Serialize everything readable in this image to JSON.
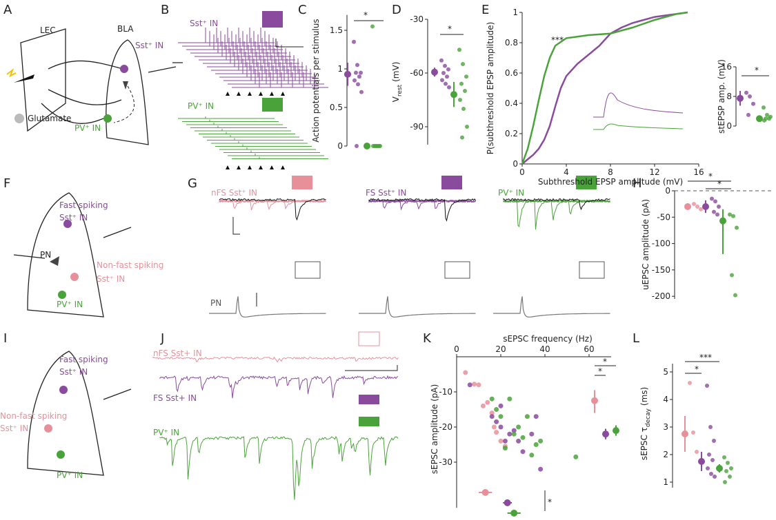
{
  "panel_labels": [
    "A",
    "B",
    "C",
    "D",
    "E",
    "F",
    "G",
    "H",
    "I",
    "J",
    "K",
    "L"
  ],
  "panel_A": {
    "regions": [
      "LEC",
      "BLA"
    ],
    "cells": [
      "Sst⁺ IN",
      "PV⁺ IN"
    ],
    "legend": "Glutamate"
  },
  "panel_B": {
    "traces": [
      "Sst⁺ IN",
      "PV⁺ IN"
    ]
  },
  "panel_F": {
    "cells": [
      "Fast spiking",
      "Sst⁺ IN",
      "PN",
      "Non-fast spiking",
      "Sst⁺ IN",
      "PV⁺ IN"
    ]
  },
  "panel_G": {
    "traces": [
      "nFS Sst⁺ IN",
      "FS Sst⁺ IN",
      "PV⁺ IN"
    ],
    "pn": "PN"
  },
  "panel_I": {
    "cells": [
      "Fast spiking",
      "Sst⁺ IN",
      "Non-fast spiking",
      "Sst⁺ IN",
      "PV⁺ IN"
    ]
  },
  "panel_J": {
    "traces": [
      "nFS Sst+ IN",
      "FS Sst+ IN",
      "PV⁺ IN"
    ]
  },
  "chart_data": [
    {
      "type": "strip",
      "ylabel": "Action potentials per stimulus",
      "ylim": [
        0,
        1.7
      ],
      "yticks": [
        0,
        0.5,
        1,
        1.5
      ],
      "series": [
        {
          "color": "#8a4a9e",
          "values": [
            1.35,
            1.05,
            0.95,
            0.95,
            0.9,
            0.85,
            0.8,
            0.7,
            0
          ],
          "mean": 0.93,
          "ci": [
            0.78,
            1.08
          ]
        },
        {
          "color": "#4aa33a",
          "values": [
            1.55,
            0,
            0,
            0,
            0,
            0,
            0,
            0
          ],
          "mean": 0,
          "ci": [
            0,
            0
          ]
        }
      ],
      "annotations": [
        "*"
      ]
    },
    {
      "type": "strip",
      "ylabel": "V",
      "ylabel_subscript": "rest",
      "ylabel_suffix": "(mV)",
      "ylim": [
        -100,
        -30
      ],
      "yticks": [
        -30,
        -60,
        -90
      ],
      "series": [
        {
          "color": "#8a4a9e",
          "values": [
            -53,
            -56,
            -58,
            -60,
            -62,
            -64,
            -66,
            -68
          ],
          "mean": -59.5,
          "ci": [
            -62,
            -57
          ]
        },
        {
          "color": "#4aa33a",
          "values": [
            -47,
            -55,
            -62,
            -66,
            -70,
            -75,
            -80,
            -90,
            -96
          ],
          "mean": -72,
          "ci": [
            -79,
            -65
          ]
        }
      ],
      "annotations": [
        "*"
      ]
    },
    {
      "type": "line",
      "ylabel": "P(subthreshold EPSP amplitude)",
      "xlabel": "Subthreshold EPSP amplitude (mV)",
      "xlim": [
        0,
        16
      ],
      "ylim": [
        0,
        1
      ],
      "xticks": [
        0,
        4,
        8,
        12,
        16
      ],
      "yticks": [
        0,
        0.2,
        0.4,
        0.6,
        0.8,
        1
      ],
      "series": [
        {
          "color": "#8a4a9e",
          "x": [
            0,
            0.5,
            1,
            1.5,
            2,
            2.5,
            3,
            3.5,
            4,
            5,
            6,
            7,
            8,
            9,
            10,
            11,
            12,
            13,
            14,
            15
          ],
          "values": [
            0,
            0.03,
            0.06,
            0.1,
            0.16,
            0.25,
            0.38,
            0.5,
            0.58,
            0.66,
            0.72,
            0.78,
            0.86,
            0.9,
            0.93,
            0.95,
            0.97,
            0.98,
            0.99,
            1
          ]
        },
        {
          "color": "#4aa33a",
          "x": [
            0,
            0.5,
            1,
            1.5,
            2,
            2.5,
            3,
            4,
            5,
            6,
            8,
            10,
            12,
            14,
            15
          ],
          "values": [
            0,
            0.1,
            0.25,
            0.42,
            0.58,
            0.7,
            0.78,
            0.83,
            0.84,
            0.85,
            0.86,
            0.9,
            0.95,
            0.99,
            1
          ]
        }
      ],
      "annotations": [
        "***"
      ]
    },
    {
      "type": "strip",
      "ylabel": "stEPSP amp. (mV)",
      "ylim": [
        0,
        16
      ],
      "yticks": [
        0,
        8,
        16
      ],
      "series": [
        {
          "color": "#8a4a9e",
          "values": [
            9,
            8,
            6,
            3
          ],
          "mean": 7.5,
          "ci": [
            5.5,
            9.5
          ]
        },
        {
          "color": "#4aa33a",
          "values": [
            5,
            3,
            2.5,
            2,
            2,
            1.5
          ],
          "mean": 2,
          "ci": [
            1.4,
            2.6
          ]
        }
      ],
      "annotations": [
        "*"
      ]
    },
    {
      "type": "strip",
      "ylabel": "uEPSC amplitude (pA)",
      "ylim": [
        -205,
        0
      ],
      "yticks": [
        0,
        -50,
        -100,
        -150,
        -200
      ],
      "zero_line": true,
      "series": [
        {
          "color": "#e8909a",
          "values": [
            -25,
            -30,
            -35
          ],
          "mean": -30,
          "ci": [
            -36,
            -24
          ]
        },
        {
          "color": "#8a4a9e",
          "values": [
            -15,
            -20,
            -30,
            -40,
            -45
          ],
          "mean": -30,
          "ci": [
            -42,
            -18
          ]
        },
        {
          "color": "#4aa33a",
          "values": [
            -45,
            -48,
            -70,
            -160,
            -198
          ],
          "mean": -57,
          "ci": [
            -120,
            -35
          ]
        }
      ],
      "annotations": [
        "*",
        "*"
      ]
    },
    {
      "type": "scatter",
      "xlabel": "sEPSC frequency (Hz)",
      "ylabel": "sEPSC amplitude (pA)",
      "xlim": [
        0,
        70
      ],
      "ylim": [
        -43,
        0
      ],
      "xticks": [
        0,
        20,
        40,
        60
      ],
      "yticks": [
        -10,
        -20,
        -30
      ],
      "series": [
        {
          "color": "#e8909a",
          "x": [
            4,
            8,
            12,
            14,
            16,
            17,
            18,
            20,
            22,
            10
          ],
          "values": [
            -4.5,
            -7.8,
            -14,
            -13,
            -16,
            -20,
            -21.5,
            -24,
            -25.5,
            -8
          ],
          "mean_x": 13,
          "ci_x": [
            10,
            16
          ],
          "mean_y": -12.5,
          "ci_y": [
            -16,
            -9.5
          ]
        },
        {
          "color": "#8a4a9e",
          "x": [
            6,
            16,
            18,
            20,
            22,
            24,
            26,
            28,
            30,
            34,
            36,
            38,
            20
          ],
          "values": [
            -8,
            -17,
            -18.5,
            -20,
            -24,
            -22,
            -21,
            -24,
            -27,
            -22,
            -17,
            -32,
            -14
          ],
          "mean_x": 23,
          "ci_x": [
            21,
            25
          ],
          "mean_y": -22,
          "ci_y": [
            -23.5,
            -20.5
          ]
        },
        {
          "color": "#4aa33a",
          "x": [
            16,
            18,
            20,
            22,
            24,
            26,
            28,
            30,
            32,
            34,
            36,
            38,
            54
          ],
          "values": [
            -12,
            -15,
            -17,
            -26,
            -12,
            -22,
            -20,
            -23,
            -17,
            -28,
            -25,
            -24,
            -28.5
          ],
          "mean_x": 26,
          "ci_x": [
            23,
            29
          ],
          "mean_y": -21,
          "ci_y": [
            -22.5,
            -19.5
          ]
        }
      ],
      "annotations": [
        "*",
        "*",
        "*"
      ]
    },
    {
      "type": "strip",
      "ylabel": "sEPSC τ",
      "ylabel_subscript": "decay",
      "ylabel_suffix": "(ms)",
      "ylim": [
        0.8,
        5.3
      ],
      "yticks": [
        1,
        2,
        3,
        4,
        5
      ],
      "series": [
        {
          "color": "#e8909a",
          "values": [
            4.6,
            2.8,
            2.1
          ],
          "mean": 2.75,
          "ci": [
            2.1,
            3.4
          ]
        },
        {
          "color": "#8a4a9e",
          "values": [
            4.5,
            3.0,
            2.5,
            2,
            1.8,
            1.5,
            1.3,
            1.2
          ],
          "mean": 1.75,
          "ci": [
            1.4,
            2.1
          ]
        },
        {
          "color": "#4aa33a",
          "values": [
            1.9,
            1.7,
            1.5,
            1.4,
            1.2,
            1.0
          ],
          "mean": 1.5,
          "ci": [
            1.35,
            1.65
          ]
        }
      ],
      "annotations": [
        "***",
        "*"
      ]
    }
  ]
}
